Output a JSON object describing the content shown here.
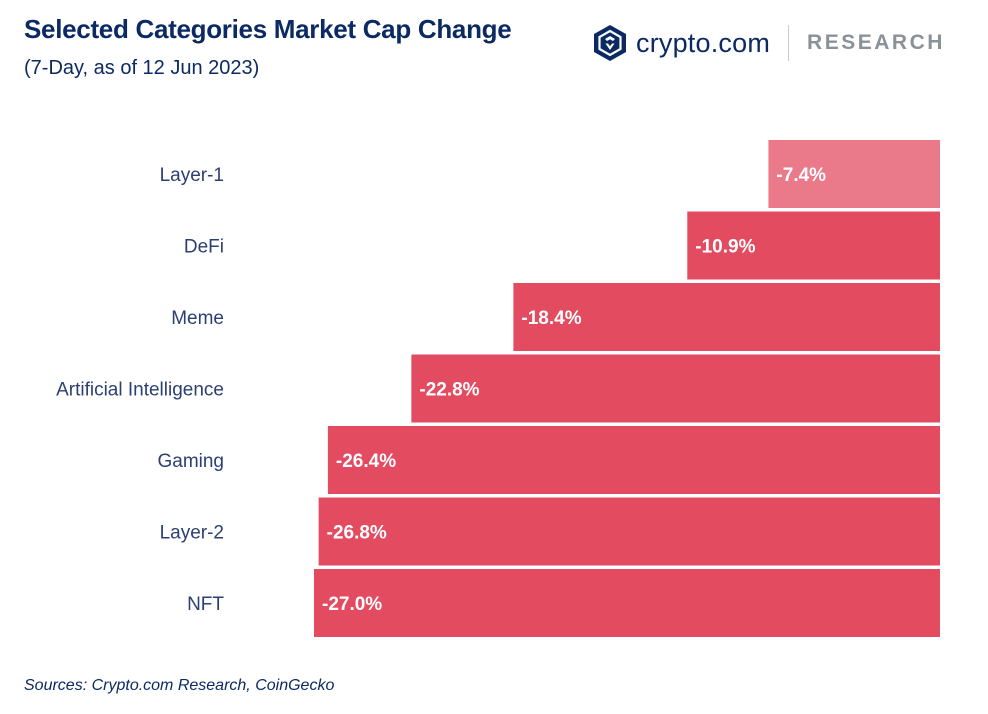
{
  "header": {
    "title": "Selected Categories Market Cap Change",
    "subtitle": "(7-Day, as of 12 Jun 2023)"
  },
  "logo": {
    "name": "crypto.com",
    "tagline": "RESEARCH",
    "icon": "crypto-com-lion-shield-icon"
  },
  "footer": {
    "source": "Sources: Crypto.com Research, CoinGecko"
  },
  "colors": {
    "bar_primary": "#e24b60",
    "bar_highlight": "#ea7989",
    "text_navy": "#0b2a63",
    "label_text": "#2c3f72",
    "research_gray": "#8b9199"
  },
  "chart_data": {
    "type": "bar",
    "orientation": "horizontal",
    "title": "Selected Categories Market Cap Change",
    "subtitle": "(7-Day, as of 12 Jun 2023)",
    "xlabel": "",
    "ylabel": "",
    "unit": "%",
    "xlim": [
      -27.0,
      0
    ],
    "grid": false,
    "legend": "none",
    "categories": [
      "Layer-1",
      "DeFi",
      "Meme",
      "Artificial Intelligence",
      "Gaming",
      "Layer-2",
      "NFT"
    ],
    "values": [
      -7.4,
      -10.9,
      -18.4,
      -22.8,
      -26.4,
      -26.8,
      -27.0
    ],
    "data_labels": [
      "-7.4%",
      "-10.9%",
      "-18.4%",
      "-22.8%",
      "-26.4%",
      "-26.8%",
      "-27.0%"
    ],
    "highlighted_category": "Layer-1"
  }
}
